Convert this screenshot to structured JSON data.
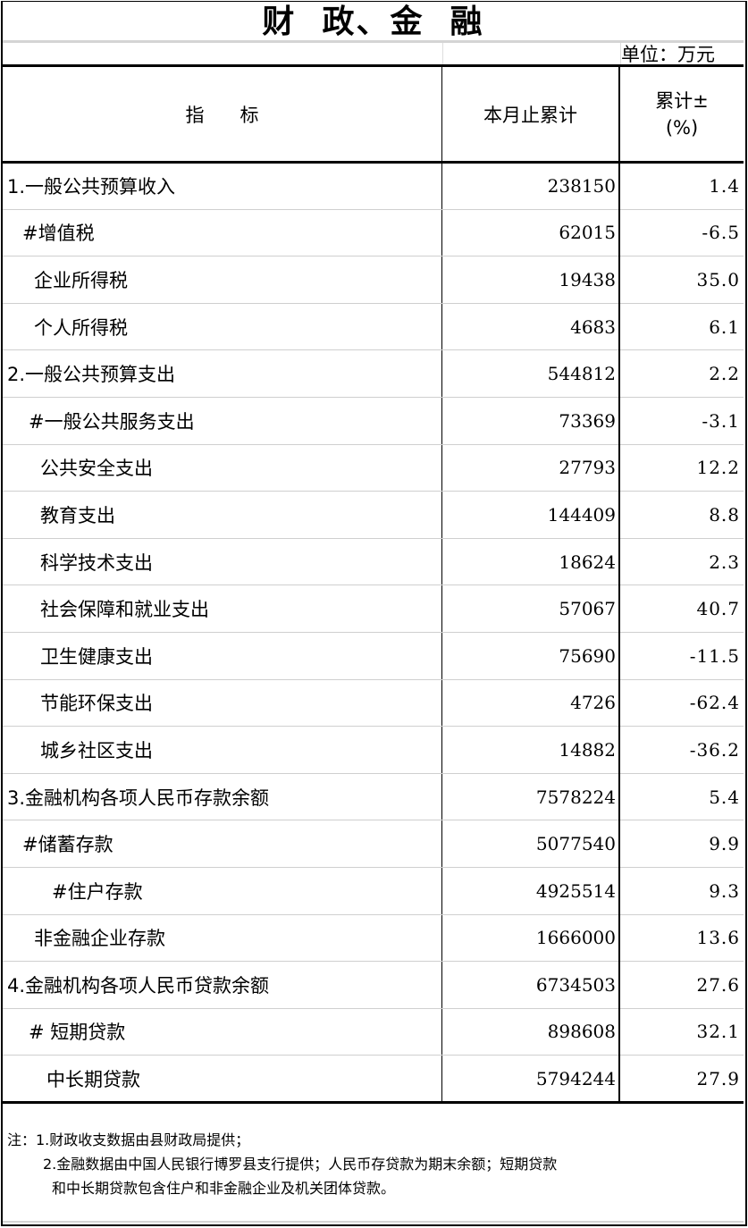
{
  "title": "财  政、金  融",
  "unit": "单位：万元",
  "headers": {
    "indicator": "指      标",
    "cumulative": "本月止累计",
    "change_line1": "累计±",
    "change_line2": "(%)"
  },
  "rows": [
    {
      "label": "1.一般公共预算收入",
      "value": "238150",
      "change": "1.4",
      "indent": 0
    },
    {
      "label": "#增值税",
      "value": "62015",
      "change": "-6.5",
      "indent": 1
    },
    {
      "label": "企业所得税",
      "value": "19438",
      "change": "35.0",
      "indent": 2
    },
    {
      "label": "个人所得税",
      "value": "4683",
      "change": "6.1",
      "indent": 2
    },
    {
      "label": "2.一般公共预算支出",
      "value": "544812",
      "change": "2.2",
      "indent": 0
    },
    {
      "label": "#一般公共服务支出",
      "value": "73369",
      "change": "-3.1",
      "indent": 3
    },
    {
      "label": "公共安全支出",
      "value": "27793",
      "change": "12.2",
      "indent": 4
    },
    {
      "label": "教育支出",
      "value": "144409",
      "change": "8.8",
      "indent": 4
    },
    {
      "label": "科学技术支出",
      "value": "18624",
      "change": "2.3",
      "indent": 4
    },
    {
      "label": "社会保障和就业支出",
      "value": "57067",
      "change": "40.7",
      "indent": 4
    },
    {
      "label": "卫生健康支出",
      "value": "75690",
      "change": "-11.5",
      "indent": 4
    },
    {
      "label": "节能环保支出",
      "value": "4726",
      "change": "-62.4",
      "indent": 4
    },
    {
      "label": "城乡社区支出",
      "value": "14882",
      "change": "-36.2",
      "indent": 4
    },
    {
      "label": "3.金融机构各项人民币存款余额",
      "value": "7578224",
      "change": "5.4",
      "indent": 0
    },
    {
      "label": "#储蓄存款",
      "value": "5077540",
      "change": "9.9",
      "indent": 1
    },
    {
      "label": "#住户存款",
      "value": "4925514",
      "change": "9.3",
      "indent": 5
    },
    {
      "label": "非金融企业存款",
      "value": "1666000",
      "change": "13.6",
      "indent": 2
    },
    {
      "label": "4.金融机构各项人民币贷款余额",
      "value": "6734503",
      "change": "27.6",
      "indent": 0
    },
    {
      "label": "# 短期贷款",
      "value": "898608",
      "change": "32.1",
      "indent": 3
    },
    {
      "label": "中长期贷款",
      "value": "5794244",
      "change": "27.9",
      "indent": 6
    }
  ],
  "notes": [
    "注：1.财政收支数据由县财政局提供；",
    "2.金融数据由中国人民银行博罗县支行提供；人民币存贷款为期末余额；短期贷款",
    "和中长期贷款包含住户和非金融企业及机关团体贷款。"
  ]
}
